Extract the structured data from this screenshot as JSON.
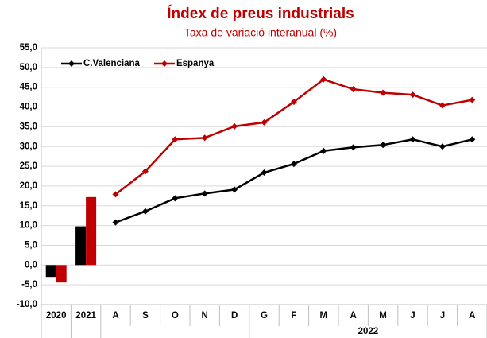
{
  "chart_data": {
    "type": "bar-line",
    "title": "Índex de preus industrials",
    "subtitle": "Taxa de variació interanual (%)",
    "bar_categories": [
      "2020",
      "2021"
    ],
    "line_category_groups": [
      {
        "categories": [
          "A",
          "S",
          "O",
          "N",
          "D"
        ]
      },
      {
        "label": "2022",
        "categories": [
          "G",
          "F",
          "M",
          "A",
          "M",
          "J",
          "J",
          "A"
        ]
      }
    ],
    "series": [
      {
        "name": "C.Valenciana",
        "color": "#000000",
        "bar_values": [
          -3.0,
          9.8
        ],
        "line_values": [
          10.8,
          13.6,
          16.9,
          18.1,
          19.1,
          23.4,
          25.6,
          28.9,
          29.8,
          30.4,
          31.8,
          30.0,
          31.8
        ]
      },
      {
        "name": "Espanya",
        "color": "#c00000",
        "bar_values": [
          -4.4,
          17.2
        ],
        "line_values": [
          17.9,
          23.7,
          31.8,
          32.2,
          35.1,
          36.1,
          41.3,
          47.0,
          44.5,
          43.6,
          43.1,
          40.4,
          41.8
        ]
      }
    ],
    "ylim": [
      -10,
      55
    ],
    "yticks": [
      {
        "value": -10,
        "label": "-10,0"
      },
      {
        "value": -5,
        "label": "-5,0"
      },
      {
        "value": 0,
        "label": "0,0"
      },
      {
        "value": 5,
        "label": "5,0"
      },
      {
        "value": 10,
        "label": "10,0"
      },
      {
        "value": 15,
        "label": "15,0"
      },
      {
        "value": 20,
        "label": "20,0"
      },
      {
        "value": 25,
        "label": "25,0"
      },
      {
        "value": 30,
        "label": "30,0"
      },
      {
        "value": 35,
        "label": "35,0"
      },
      {
        "value": 40,
        "label": "40,0"
      },
      {
        "value": 45,
        "label": "45,0"
      },
      {
        "value": 50,
        "label": "50,0"
      },
      {
        "value": 55,
        "label": "55,0"
      }
    ],
    "grid": true,
    "legend": "top-left"
  }
}
